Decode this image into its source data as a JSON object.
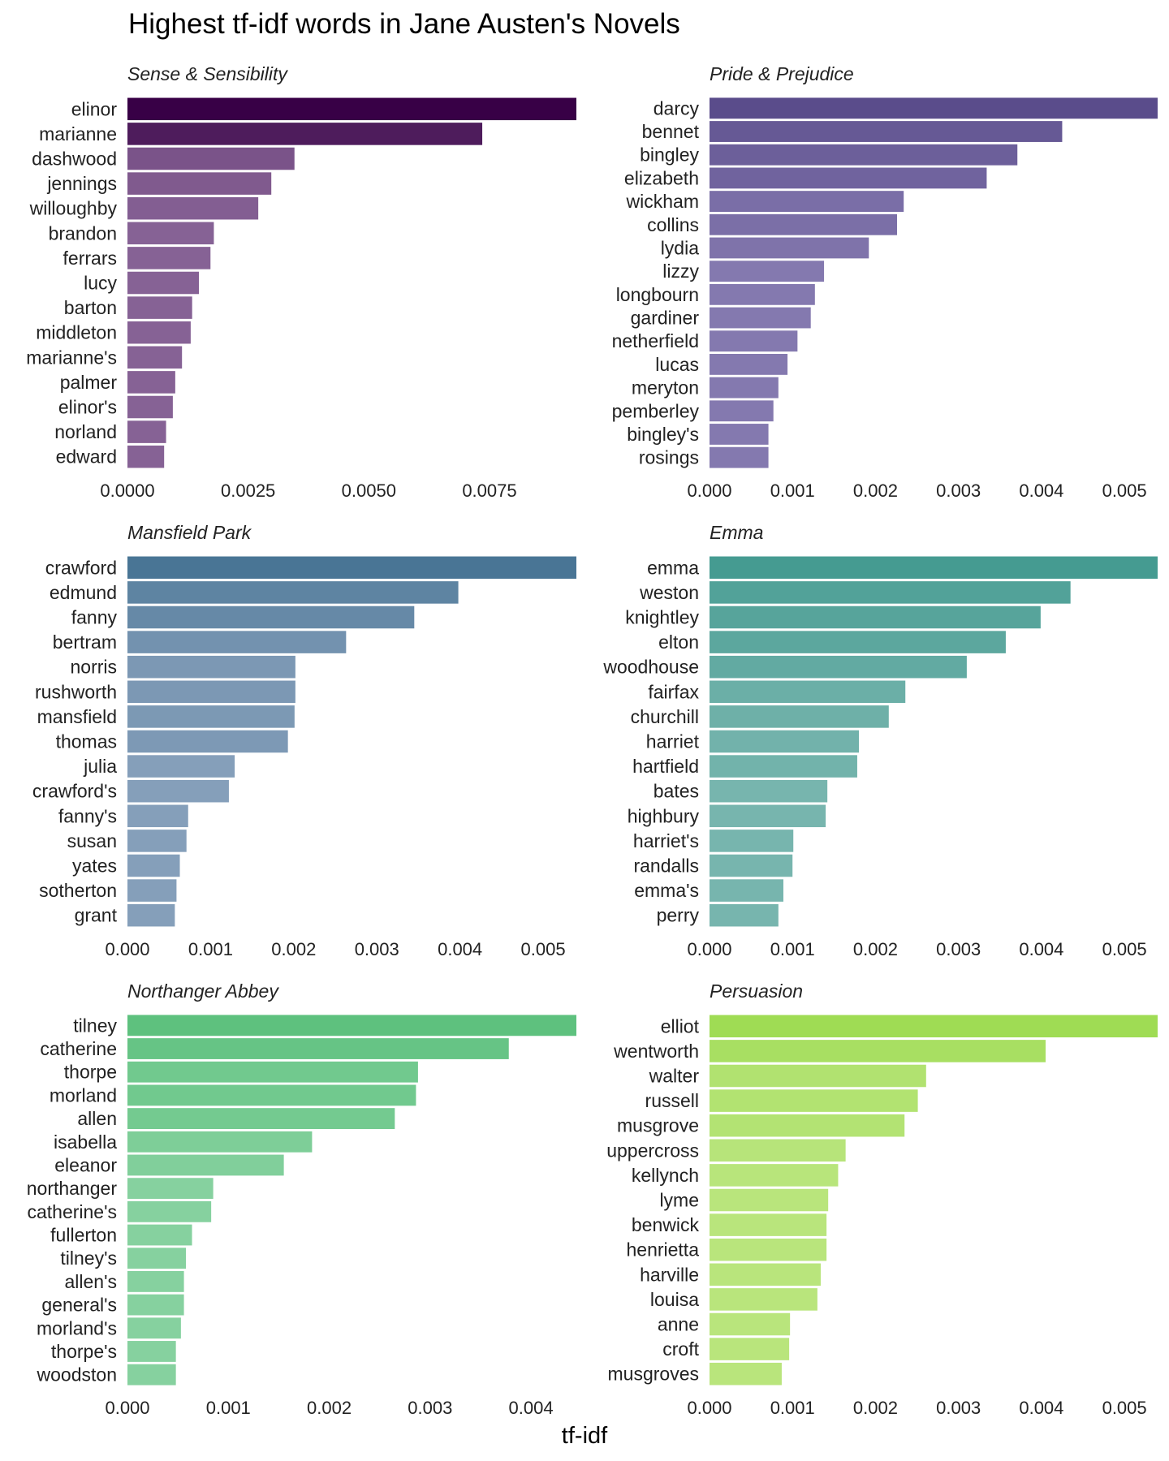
{
  "title": "Highest tf-idf words in Jane Austen's Novels",
  "xlabel": "tf-idf",
  "chart_data": [
    {
      "type": "bar",
      "orientation": "horizontal",
      "title": "Sense & Sensibility",
      "color_dark": "#380046",
      "color_light": "#866295",
      "xlim": [
        0,
        0.0093
      ],
      "ticks": [
        0.0,
        0.0025,
        0.005,
        0.0075
      ],
      "tick_labels": [
        "0.0000",
        "0.0025",
        "0.0050",
        "0.0075"
      ],
      "categories": [
        "elinor",
        "marianne",
        "dashwood",
        "jennings",
        "willoughby",
        "brandon",
        "ferrars",
        "lucy",
        "barton",
        "middleton",
        "marianne's",
        "palmer",
        "elinor's",
        "norland",
        "edward"
      ],
      "values": [
        0.0093,
        0.00735,
        0.00346,
        0.00298,
        0.00271,
        0.00179,
        0.00172,
        0.00148,
        0.00134,
        0.00131,
        0.00113,
        0.00099,
        0.00094,
        0.0008,
        0.00076
      ]
    },
    {
      "type": "bar",
      "orientation": "horizontal",
      "title": "Pride & Prejudice",
      "color_dark": "#5a4c8b",
      "color_light": "#8479af",
      "xlim": [
        0,
        0.0054
      ],
      "ticks": [
        0.0,
        0.001,
        0.002,
        0.003,
        0.004,
        0.005
      ],
      "tick_labels": [
        "0.000",
        "0.001",
        "0.002",
        "0.003",
        "0.004",
        "0.005"
      ],
      "categories": [
        "darcy",
        "bennet",
        "bingley",
        "elizabeth",
        "wickham",
        "collins",
        "lydia",
        "lizzy",
        "longbourn",
        "gardiner",
        "netherfield",
        "lucas",
        "meryton",
        "pemberley",
        "bingley's",
        "rosings"
      ],
      "values": [
        0.0054,
        0.00425,
        0.00371,
        0.00334,
        0.00234,
        0.00226,
        0.00192,
        0.00138,
        0.00127,
        0.00122,
        0.00106,
        0.00094,
        0.00083,
        0.00077,
        0.00071,
        0.00071
      ]
    },
    {
      "type": "bar",
      "orientation": "horizontal",
      "title": "Mansfield Park",
      "color_dark": "#497595",
      "color_light": "#859fba",
      "xlim": [
        0,
        0.0054
      ],
      "ticks": [
        0.0,
        0.001,
        0.002,
        0.003,
        0.004,
        0.005
      ],
      "tick_labels": [
        "0.000",
        "0.001",
        "0.002",
        "0.003",
        "0.004",
        "0.005"
      ],
      "categories": [
        "crawford",
        "edmund",
        "fanny",
        "bertram",
        "norris",
        "rushworth",
        "mansfield",
        "thomas",
        "julia",
        "crawford's",
        "fanny's",
        "susan",
        "yates",
        "sotherton",
        "grant"
      ],
      "values": [
        0.0054,
        0.00398,
        0.00345,
        0.00263,
        0.00202,
        0.00202,
        0.00201,
        0.00193,
        0.00129,
        0.00122,
        0.00073,
        0.00071,
        0.00063,
        0.00059,
        0.00057
      ]
    },
    {
      "type": "bar",
      "orientation": "horizontal",
      "title": "Emma",
      "color_dark": "#459b91",
      "color_light": "#77b5ae",
      "xlim": [
        0,
        0.0054
      ],
      "ticks": [
        0.0,
        0.001,
        0.002,
        0.003,
        0.004,
        0.005
      ],
      "tick_labels": [
        "0.000",
        "0.001",
        "0.002",
        "0.003",
        "0.004",
        "0.005"
      ],
      "categories": [
        "emma",
        "weston",
        "knightley",
        "elton",
        "woodhouse",
        "fairfax",
        "churchill",
        "harriet",
        "hartfield",
        "bates",
        "highbury",
        "harriet's",
        "randalls",
        "emma's",
        "perry"
      ],
      "values": [
        0.0054,
        0.00435,
        0.00399,
        0.00357,
        0.0031,
        0.00236,
        0.00216,
        0.0018,
        0.00178,
        0.00142,
        0.0014,
        0.00101,
        0.001,
        0.00089,
        0.00083
      ]
    },
    {
      "type": "bar",
      "orientation": "horizontal",
      "title": "Northanger Abbey",
      "color_dark": "#5ec17e",
      "color_light": "#86d19f",
      "xlim": [
        0,
        0.00445
      ],
      "ticks": [
        0.0,
        0.001,
        0.002,
        0.003,
        0.004
      ],
      "tick_labels": [
        "0.000",
        "0.001",
        "0.002",
        "0.003",
        "0.004"
      ],
      "categories": [
        "tilney",
        "catherine",
        "thorpe",
        "morland",
        "allen",
        "isabella",
        "eleanor",
        "northanger",
        "catherine's",
        "fullerton",
        "tilney's",
        "allen's",
        "general's",
        "morland's",
        "thorpe's",
        "woodston"
      ],
      "values": [
        0.00445,
        0.00378,
        0.00288,
        0.00286,
        0.00265,
        0.00183,
        0.00155,
        0.00085,
        0.00083,
        0.00064,
        0.00058,
        0.00056,
        0.00056,
        0.00053,
        0.00048,
        0.00048
      ]
    },
    {
      "type": "bar",
      "orientation": "horizontal",
      "title": "Persuasion",
      "color_dark": "#9fdc54",
      "color_light": "#b9e57c",
      "xlim": [
        0,
        0.0054
      ],
      "ticks": [
        0.0,
        0.001,
        0.002,
        0.003,
        0.004,
        0.005
      ],
      "tick_labels": [
        "0.000",
        "0.001",
        "0.002",
        "0.003",
        "0.004",
        "0.005"
      ],
      "categories": [
        "elliot",
        "wentworth",
        "walter",
        "russell",
        "musgrove",
        "uppercross",
        "kellynch",
        "lyme",
        "benwick",
        "henrietta",
        "harville",
        "louisa",
        "anne",
        "croft",
        "musgroves"
      ],
      "values": [
        0.0054,
        0.00405,
        0.00261,
        0.00251,
        0.00235,
        0.00164,
        0.00155,
        0.00143,
        0.00141,
        0.00141,
        0.00134,
        0.0013,
        0.00097,
        0.00096,
        0.00087
      ]
    }
  ]
}
